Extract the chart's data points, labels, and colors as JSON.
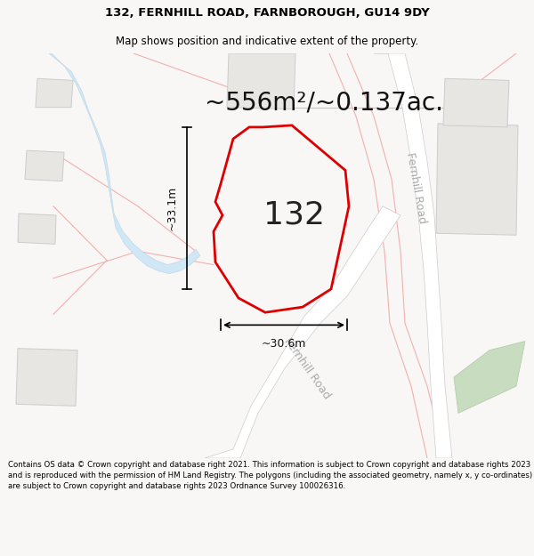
{
  "title_line1": "132, FERNHILL ROAD, FARNBOROUGH, GU14 9DY",
  "title_line2": "Map shows position and indicative extent of the property.",
  "area_text": "~556m²/~0.137ac.",
  "property_number": "132",
  "dim_left": "~33.1m",
  "dim_bottom": "~30.6m",
  "road_label_right": "Fernhill Road",
  "road_label_bottom": "Fernhill Road",
  "footer": "Contains OS data © Crown copyright and database right 2021. This information is subject to Crown copyright and database rights 2023 and is reproduced with the permission of HM Land Registry. The polygons (including the associated geometry, namely x, y co-ordinates) are subject to Crown copyright and database rights 2023 Ordnance Survey 100026316.",
  "bg_color": "#f8f7f5",
  "map_bg": "#f8f7f5",
  "property_edge": "#dd0000",
  "title_fontsize": 9.5,
  "subtitle_fontsize": 8.5,
  "area_fontsize": 20,
  "number_fontsize": 26,
  "dim_fontsize": 9,
  "road_label_fontsize": 9,
  "footer_fontsize": 6.2
}
